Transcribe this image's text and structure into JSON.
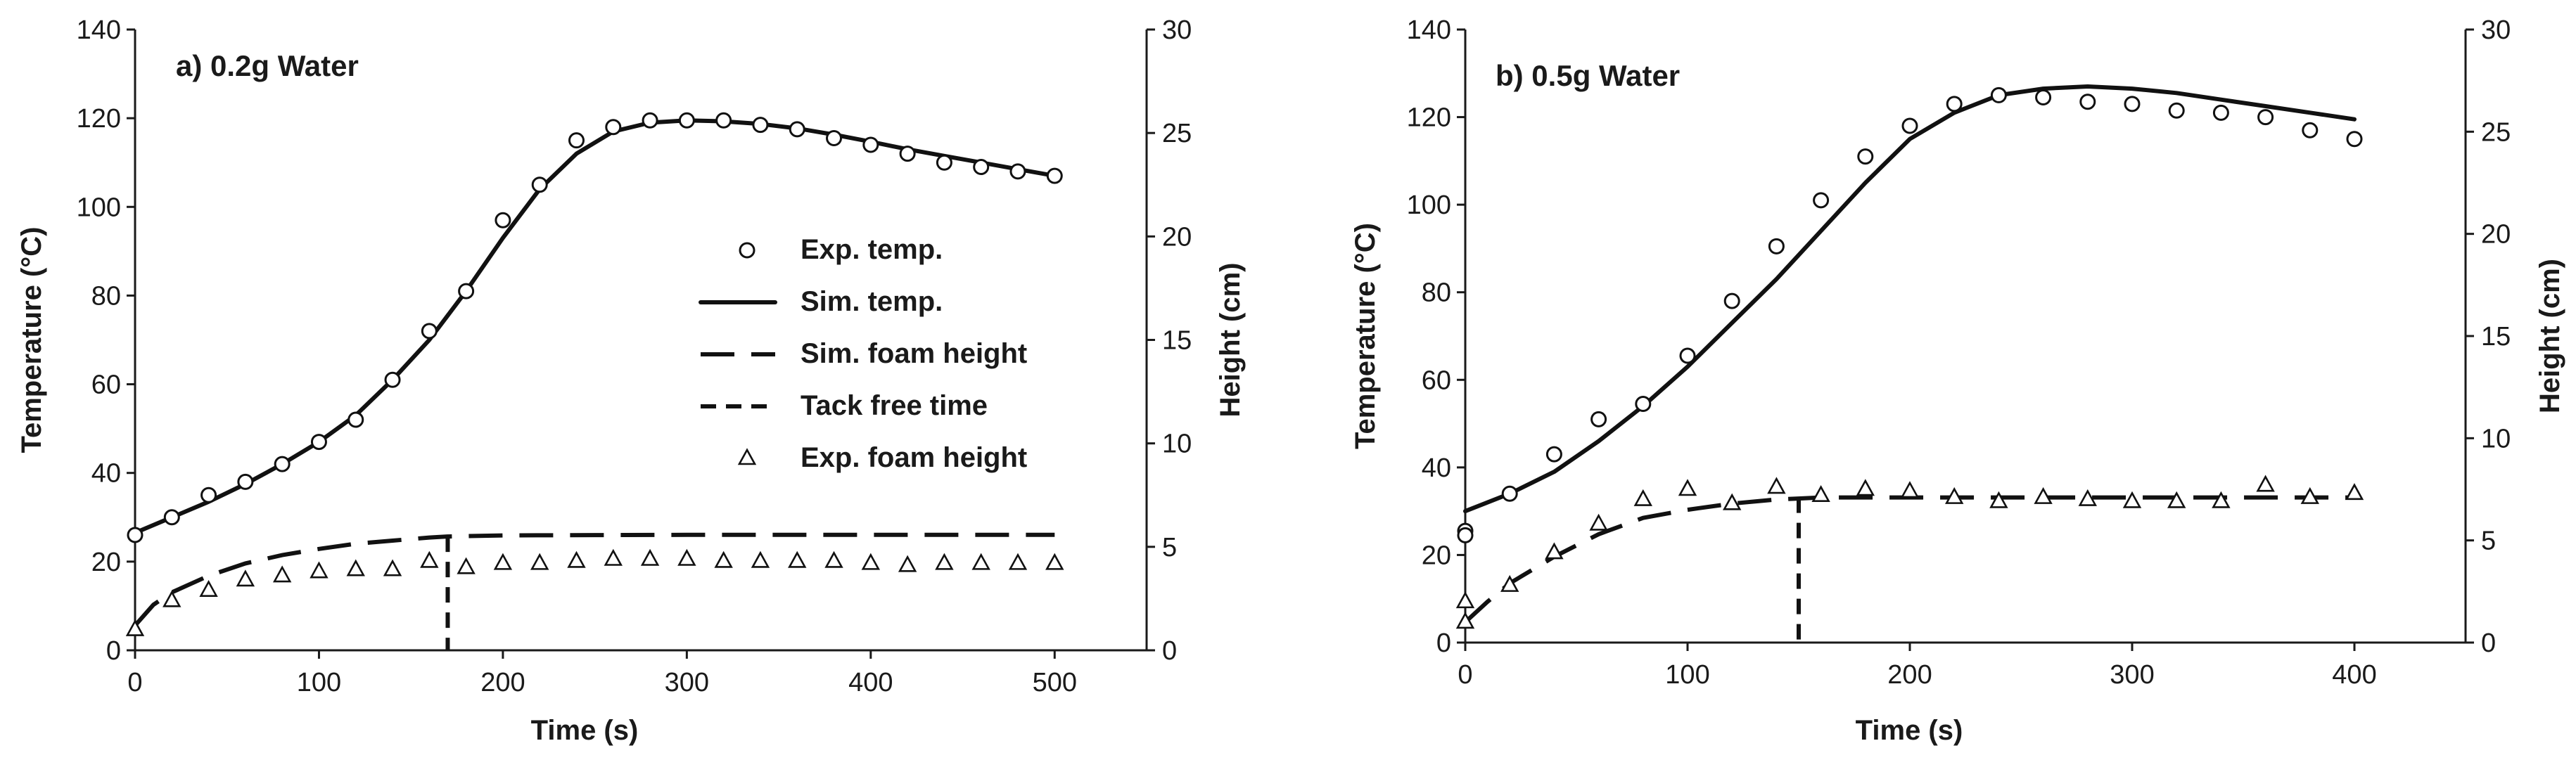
{
  "chart_data": [
    {
      "type": "line",
      "title": "a) 0.2g Water",
      "xlabel": "Time (s)",
      "ylabel": "Temperature (°C)",
      "y2label": "Height (cm)",
      "xlim": [
        0,
        550
      ],
      "xticks": [
        0,
        100,
        200,
        300,
        400,
        500
      ],
      "ylim": [
        0,
        140
      ],
      "yticks": [
        0,
        20,
        40,
        60,
        80,
        100,
        120,
        140
      ],
      "y2lim": [
        0,
        30
      ],
      "y2ticks": [
        0,
        5,
        10,
        15,
        20,
        25,
        30
      ],
      "legend": {
        "placement": "center-right",
        "entries": [
          "Exp. temp.",
          "Sim. temp.",
          "Sim. foam height",
          "Tack free time",
          "Exp. foam height"
        ]
      },
      "series": [
        {
          "name": "Exp. temp.",
          "axis": "left",
          "style": "circle",
          "x": [
            0,
            20,
            40,
            60,
            80,
            100,
            120,
            140,
            160,
            180,
            200,
            220,
            240,
            260,
            280,
            300,
            320,
            340,
            360,
            380,
            400,
            420,
            440,
            460,
            480,
            500
          ],
          "y": [
            26,
            30,
            35,
            38,
            42,
            47,
            52,
            61,
            72,
            81,
            97,
            105,
            115,
            118,
            119.5,
            119.5,
            119.5,
            118.5,
            117.5,
            115.5,
            114,
            112,
            110,
            109,
            108,
            107
          ]
        },
        {
          "name": "Sim. temp.",
          "axis": "left",
          "style": "solid",
          "x": [
            0,
            20,
            40,
            60,
            80,
            100,
            120,
            140,
            160,
            180,
            200,
            220,
            240,
            260,
            280,
            300,
            320,
            340,
            360,
            380,
            400,
            420,
            440,
            460,
            480,
            500
          ],
          "y": [
            26.5,
            30,
            33.5,
            37.5,
            42,
            47,
            53,
            61,
            70,
            81,
            93,
            104,
            112,
            117,
            119,
            119.5,
            119.3,
            118.7,
            117.7,
            116.3,
            114.7,
            113,
            111.5,
            110,
            108.5,
            107
          ]
        },
        {
          "name": "Sim. foam height",
          "axis": "right",
          "style": "long-dash",
          "x": [
            0,
            10,
            20,
            40,
            60,
            80,
            100,
            120,
            140,
            160,
            170,
            200,
            250,
            300,
            350,
            400,
            450,
            500
          ],
          "y": [
            1.2,
            2.2,
            2.8,
            3.6,
            4.2,
            4.6,
            4.9,
            5.15,
            5.3,
            5.45,
            5.5,
            5.55,
            5.57,
            5.58,
            5.58,
            5.58,
            5.58,
            5.58
          ]
        },
        {
          "name": "Exp. foam height",
          "axis": "right",
          "style": "triangle",
          "x": [
            0,
            20,
            40,
            60,
            80,
            100,
            120,
            140,
            160,
            180,
            200,
            220,
            240,
            260,
            280,
            300,
            320,
            340,
            360,
            380,
            400,
            420,
            440,
            460,
            480,
            500
          ],
          "y": [
            1.0,
            2.4,
            2.9,
            3.4,
            3.6,
            3.8,
            3.9,
            3.9,
            4.3,
            4.0,
            4.2,
            4.2,
            4.3,
            4.4,
            4.4,
            4.4,
            4.3,
            4.3,
            4.3,
            4.3,
            4.2,
            4.1,
            4.2,
            4.2,
            4.2,
            4.2
          ]
        }
      ],
      "tack_free_time": {
        "name": "Tack free time",
        "x": 170,
        "height_top": 5.5
      }
    },
    {
      "type": "line",
      "title": "b) 0.5g Water",
      "xlabel": "Time (s)",
      "ylabel": "Temperature (°C)",
      "y2label": "Height (cm)",
      "xlim": [
        0,
        450
      ],
      "xticks": [
        0,
        100,
        200,
        300,
        400
      ],
      "ylim": [
        0,
        140
      ],
      "yticks": [
        0,
        20,
        40,
        60,
        80,
        100,
        120,
        140
      ],
      "y2lim": [
        0,
        30
      ],
      "y2ticks": [
        0,
        5,
        10,
        15,
        20,
        25,
        30
      ],
      "series": [
        {
          "name": "Exp. temp.",
          "axis": "left",
          "style": "circle",
          "x": [
            0,
            0,
            20,
            40,
            60,
            80,
            100,
            120,
            140,
            160,
            180,
            200,
            220,
            240,
            260,
            280,
            300,
            320,
            340,
            360,
            380,
            400
          ],
          "y": [
            25.5,
            24.5,
            34,
            43,
            51,
            54.5,
            65.5,
            78,
            90.5,
            101,
            111,
            118,
            123,
            125,
            124.5,
            123.5,
            123,
            121.5,
            121,
            120,
            117,
            115
          ]
        },
        {
          "name": "Sim. temp.",
          "axis": "left",
          "style": "solid",
          "x": [
            0,
            20,
            40,
            60,
            80,
            100,
            120,
            140,
            160,
            180,
            200,
            220,
            240,
            260,
            280,
            300,
            320,
            340,
            360,
            380,
            400
          ],
          "y": [
            30,
            34,
            39,
            46,
            54,
            63,
            73,
            83,
            94,
            105,
            115,
            121,
            125,
            126.5,
            127,
            126.5,
            125.5,
            124,
            122.5,
            121,
            119.5
          ]
        },
        {
          "name": "Sim. foam height",
          "axis": "right",
          "style": "long-dash",
          "x": [
            0,
            10,
            20,
            40,
            60,
            80,
            100,
            120,
            140,
            150,
            160,
            200,
            250,
            300,
            350,
            400
          ],
          "y": [
            1.0,
            2.0,
            2.9,
            4.2,
            5.3,
            6.1,
            6.5,
            6.8,
            7.0,
            7.05,
            7.1,
            7.1,
            7.1,
            7.1,
            7.1,
            7.1
          ]
        },
        {
          "name": "Exp. foam height",
          "axis": "right",
          "style": "triangle",
          "x": [
            0,
            0,
            20,
            40,
            60,
            80,
            100,
            120,
            140,
            160,
            180,
            200,
            220,
            240,
            260,
            280,
            300,
            320,
            340,
            360,
            380,
            400
          ],
          "y": [
            1.0,
            2.0,
            2.8,
            4.4,
            5.8,
            7.0,
            7.5,
            6.8,
            7.6,
            7.2,
            7.5,
            7.4,
            7.1,
            6.9,
            7.1,
            7.0,
            6.9,
            6.9,
            6.9,
            7.7,
            7.1,
            7.3
          ]
        }
      ],
      "tack_free_time": {
        "name": "Tack free time",
        "x": 150,
        "height_top": 7.1
      }
    }
  ]
}
